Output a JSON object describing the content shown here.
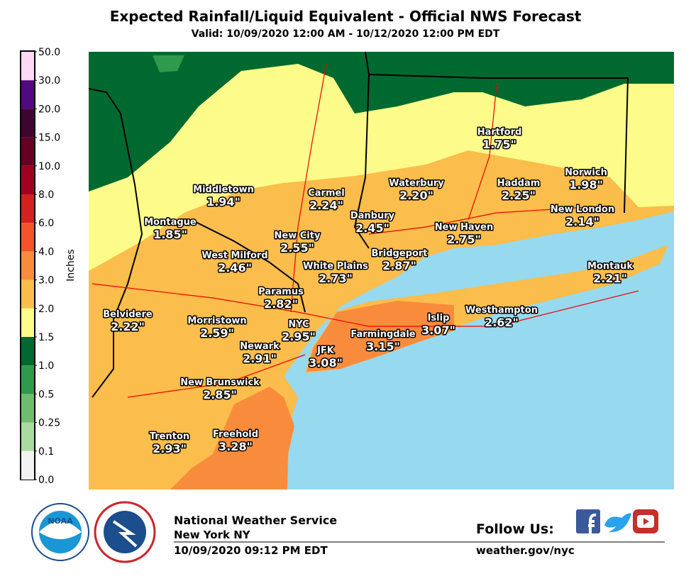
{
  "header": {
    "title": "Expected Rainfall/Liquid Equivalent - Official NWS Forecast",
    "subtitle": "Valid: 10/09/2020 12:00 AM - 10/12/2020 12:00 PM EDT"
  },
  "legend": {
    "title": "Inches",
    "ticks": [
      "50.0",
      "30.0",
      "20.0",
      "15.0",
      "10.0",
      "8.0",
      "6.0",
      "4.0",
      "3.0",
      "2.0",
      "1.5",
      "1.0",
      "0.5",
      "0.25",
      "0.1",
      "0.0"
    ],
    "colors": [
      "#fdd9f5",
      "#52087e",
      "#3e0530",
      "#650022",
      "#a0001f",
      "#d3211f",
      "#f5532a",
      "#f98c3c",
      "#fbbd4b",
      "#fdfb8a",
      "#00692f",
      "#2e9a4b",
      "#6ebd6d",
      "#a9dba0",
      "#f2f4f2"
    ]
  },
  "cities": [
    {
      "name": "Hartford",
      "amount": "1.75\""
    },
    {
      "name": "Middletown",
      "amount": "1.94\""
    },
    {
      "name": "Carmel",
      "amount": "2.24\""
    },
    {
      "name": "Waterbury",
      "amount": "2.20\""
    },
    {
      "name": "Haddam",
      "amount": "2.25\""
    },
    {
      "name": "Norwich",
      "amount": "1.98\""
    },
    {
      "name": "Montague",
      "amount": "1.85\""
    },
    {
      "name": "Danbury",
      "amount": "2.45\""
    },
    {
      "name": "New City",
      "amount": "2.55\""
    },
    {
      "name": "New Haven",
      "amount": "2.75\""
    },
    {
      "name": "New London",
      "amount": "2.14\""
    },
    {
      "name": "West Milford",
      "amount": "2.46\""
    },
    {
      "name": "Bridgeport",
      "amount": "2.87\""
    },
    {
      "name": "White Plains",
      "amount": "2.73\""
    },
    {
      "name": "Montauk",
      "amount": "2.21\""
    },
    {
      "name": "Paramus",
      "amount": "2.82\""
    },
    {
      "name": "Belvidere",
      "amount": "2.22\""
    },
    {
      "name": "Morristown",
      "amount": "2.59\""
    },
    {
      "name": "NYC",
      "amount": "2.95\""
    },
    {
      "name": "Westhampton",
      "amount": "2.62\""
    },
    {
      "name": "Islip",
      "amount": "3.07\""
    },
    {
      "name": "Farmingdale",
      "amount": "3.15\""
    },
    {
      "name": "Newark",
      "amount": "2.91\""
    },
    {
      "name": "JFK",
      "amount": "3.08\""
    },
    {
      "name": "New Brunswick",
      "amount": "2.85\""
    },
    {
      "name": "Freehold",
      "amount": "3.28\""
    },
    {
      "name": "Trenton",
      "amount": "2.93\""
    }
  ],
  "footer": {
    "office": "National Weather Service",
    "location": "New York NY",
    "issued": "10/09/2020 09:12 PM EDT",
    "follow": "Follow Us:",
    "url": "weather.gov/nyc",
    "noaa_logo": "NOAA"
  }
}
